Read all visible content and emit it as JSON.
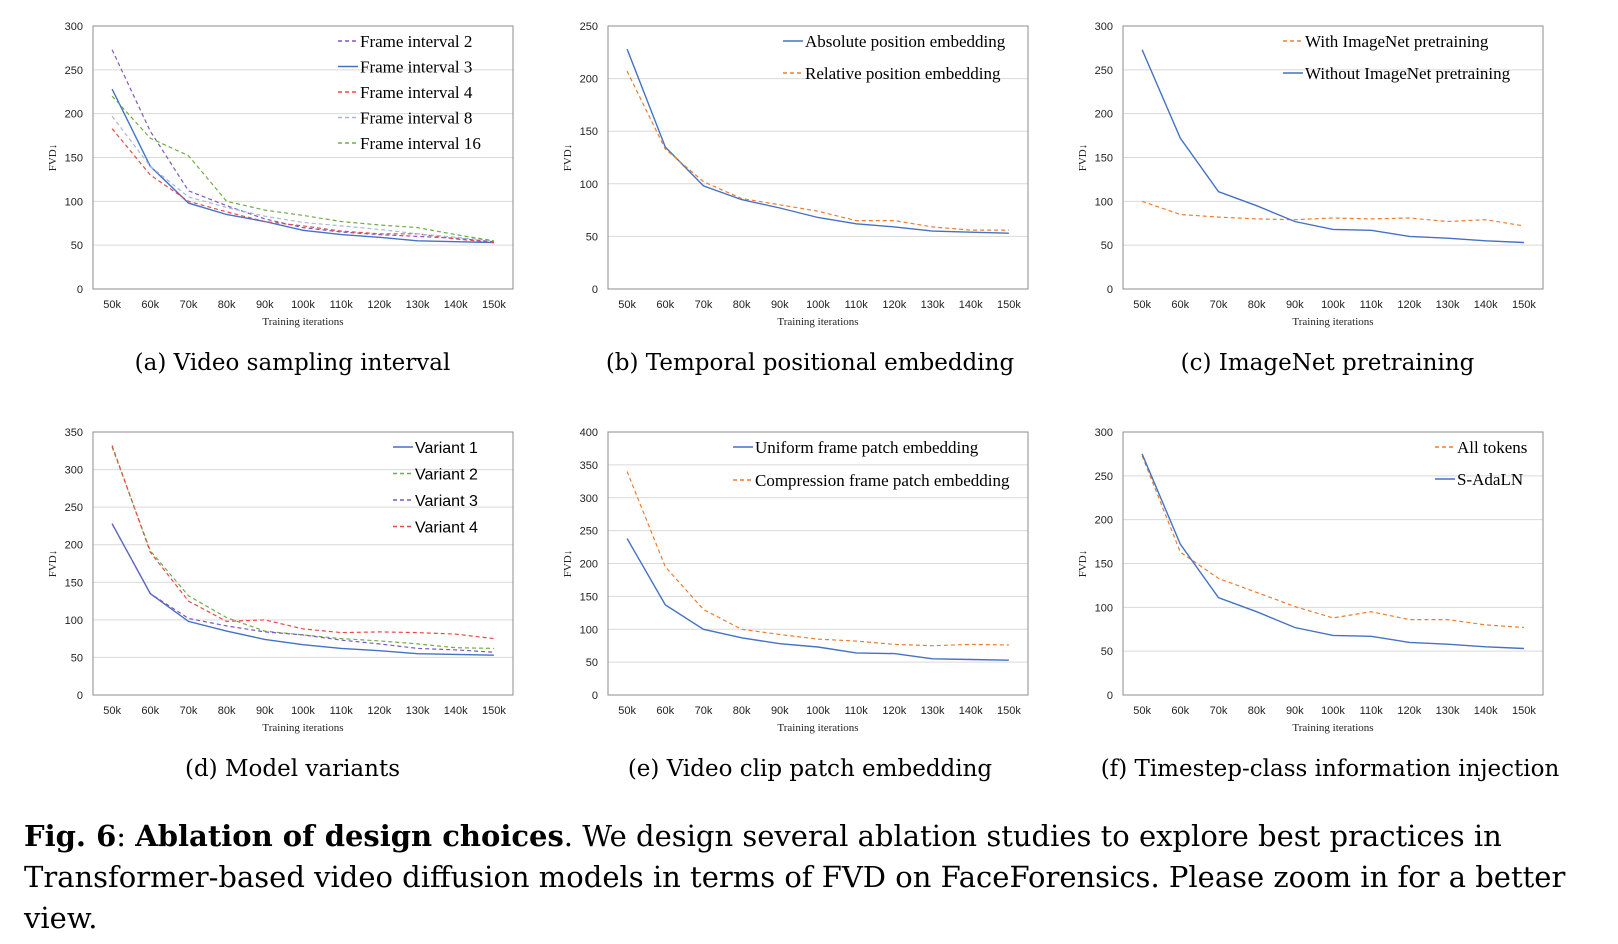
{
  "chart_data": [
    {
      "type": "line",
      "caption": "(a) Video sampling interval",
      "ylabel": "FVD↓",
      "xlabel": "Training iterations",
      "ylim": [
        0,
        300
      ],
      "yticks": [
        "0",
        "50",
        "100",
        "150",
        "200",
        "250",
        "300"
      ],
      "categories": [
        "50k",
        "60k",
        "70k",
        "80k",
        "90k",
        "100k",
        "110k",
        "120k",
        "130k",
        "140k",
        "150k"
      ],
      "legend_font": "serif",
      "series": [
        {
          "name": "Frame interval 2",
          "color": "#7e57c2",
          "dashed": true,
          "values": [
            273,
            180,
            112,
            95,
            80,
            70,
            65,
            62,
            60,
            58,
            54
          ]
        },
        {
          "name": "Frame interval 3",
          "color": "#4472c4",
          "dashed": false,
          "values": [
            228,
            140,
            98,
            85,
            77,
            67,
            62,
            59,
            55,
            54,
            53
          ]
        },
        {
          "name": "Frame interval 4",
          "color": "#e84a4a",
          "dashed": true,
          "values": [
            183,
            130,
            100,
            88,
            77,
            72,
            66,
            63,
            63,
            57,
            53
          ]
        },
        {
          "name": "Frame interval 8",
          "color": "#a8b8d8",
          "dashed": true,
          "values": [
            197,
            140,
            105,
            93,
            83,
            76,
            72,
            68,
            63,
            59,
            55
          ]
        },
        {
          "name": "Frame interval 16",
          "color": "#70ad47",
          "dashed": true,
          "values": [
            220,
            172,
            152,
            100,
            90,
            84,
            77,
            73,
            70,
            62,
            55
          ]
        }
      ]
    },
    {
      "type": "line",
      "caption": "(b) Temporal positional embedding",
      "ylabel": "FVD↓",
      "xlabel": "Training iterations",
      "ylim": [
        0,
        250
      ],
      "yticks": [
        "0",
        "50",
        "100",
        "150",
        "200",
        "250"
      ],
      "categories": [
        "50k",
        "60k",
        "70k",
        "80k",
        "90k",
        "100k",
        "110k",
        "120k",
        "130k",
        "140k",
        "150k"
      ],
      "legend_font": "serif",
      "series": [
        {
          "name": "Absolute position embedding",
          "color": "#4472c4",
          "dashed": false,
          "values": [
            228,
            135,
            98,
            85,
            77,
            68,
            62,
            59,
            55,
            54,
            53
          ]
        },
        {
          "name": "Relative position embedding",
          "color": "#ed7d31",
          "dashed": true,
          "values": [
            207,
            133,
            102,
            86,
            80,
            74,
            65,
            65,
            59,
            56,
            56
          ]
        }
      ]
    },
    {
      "type": "line",
      "caption": "(c) ImageNet pretraining",
      "ylabel": "FVD↓",
      "xlabel": "Training iterations",
      "ylim": [
        0,
        300
      ],
      "yticks": [
        "0",
        "50",
        "100",
        "150",
        "200",
        "250",
        "300"
      ],
      "categories": [
        "50k",
        "60k",
        "70k",
        "80k",
        "90k",
        "100k",
        "110k",
        "120k",
        "130k",
        "140k",
        "150k"
      ],
      "legend_font": "serif",
      "series": [
        {
          "name": "With ImageNet pretraining",
          "color": "#ed7d31",
          "dashed": true,
          "values": [
            100,
            85,
            82,
            80,
            79,
            81,
            80,
            81,
            77,
            79,
            72
          ]
        },
        {
          "name": "Without ImageNet pretraining",
          "color": "#4472c4",
          "dashed": false,
          "values": [
            273,
            172,
            111,
            95,
            77,
            68,
            67,
            60,
            58,
            55,
            53
          ]
        }
      ]
    },
    {
      "type": "line",
      "caption": "(d) Model variants",
      "ylabel": "FVD↓",
      "xlabel": "Training iterations",
      "ylim": [
        0,
        350
      ],
      "yticks": [
        "0",
        "50",
        "100",
        "150",
        "200",
        "250",
        "300",
        "350"
      ],
      "categories": [
        "50k",
        "60k",
        "70k",
        "80k",
        "90k",
        "100k",
        "110k",
        "120k",
        "130k",
        "140k",
        "150k"
      ],
      "legend_font": "sans",
      "series": [
        {
          "name": "Variant 1",
          "color": "#4472c4",
          "dashed": false,
          "values": [
            228,
            135,
            98,
            85,
            74,
            67,
            62,
            59,
            55,
            54,
            53
          ]
        },
        {
          "name": "Variant 2",
          "color": "#70ad47",
          "dashed": true,
          "values": [
            330,
            192,
            132,
            103,
            85,
            80,
            75,
            72,
            68,
            63,
            62
          ]
        },
        {
          "name": "Variant 3",
          "color": "#7e57c2",
          "dashed": true,
          "values": [
            228,
            135,
            102,
            92,
            84,
            80,
            73,
            68,
            62,
            60,
            57
          ]
        },
        {
          "name": "Variant 4",
          "color": "#e84a4a",
          "dashed": true,
          "values": [
            332,
            190,
            125,
            98,
            100,
            88,
            83,
            84,
            83,
            81,
            75
          ]
        }
      ]
    },
    {
      "type": "line",
      "caption": "(e) Video clip patch embedding",
      "ylabel": "FVD↓",
      "xlabel": "Training iterations",
      "ylim": [
        0,
        400
      ],
      "yticks": [
        "0",
        "50",
        "100",
        "150",
        "200",
        "250",
        "300",
        "350",
        "400"
      ],
      "categories": [
        "50k",
        "60k",
        "70k",
        "80k",
        "90k",
        "100k",
        "110k",
        "120k",
        "130k",
        "140k",
        "150k"
      ],
      "legend_font": "serif",
      "series": [
        {
          "name": "Uniform frame patch embedding",
          "color": "#4472c4",
          "dashed": false,
          "values": [
            238,
            137,
            100,
            87,
            78,
            73,
            64,
            63,
            55,
            54,
            53
          ]
        },
        {
          "name": "Compression frame patch embedding",
          "color": "#ed7d31",
          "dashed": true,
          "values": [
            340,
            195,
            130,
            100,
            92,
            85,
            82,
            77,
            75,
            77,
            76
          ]
        }
      ]
    },
    {
      "type": "line",
      "caption": "(f) Timestep-class information injection",
      "ylabel": "FVD↓",
      "xlabel": "Training iterations",
      "ylim": [
        0,
        300
      ],
      "yticks": [
        "0",
        "50",
        "100",
        "150",
        "200",
        "250",
        "300"
      ],
      "categories": [
        "50k",
        "60k",
        "70k",
        "80k",
        "90k",
        "100k",
        "110k",
        "120k",
        "130k",
        "140k",
        "150k"
      ],
      "legend_font": "serif",
      "series": [
        {
          "name": "All tokens",
          "color": "#ed7d31",
          "dashed": true,
          "values": [
            273,
            163,
            133,
            117,
            101,
            88,
            95,
            86,
            86,
            80,
            77
          ]
        },
        {
          "name": "S-AdaLN",
          "color": "#4472c4",
          "dashed": false,
          "values": [
            275,
            172,
            111,
            95,
            77,
            68,
            67,
            60,
            58,
            55,
            53
          ]
        }
      ]
    }
  ],
  "figure_caption": {
    "label": "Fig. 6",
    "title": "Ablation of design choices",
    "body": ". We design several ablation studies to explore best practices in Transformer-based video diffusion models in terms of FVD on FaceForensics. Please zoom in for a better view."
  }
}
